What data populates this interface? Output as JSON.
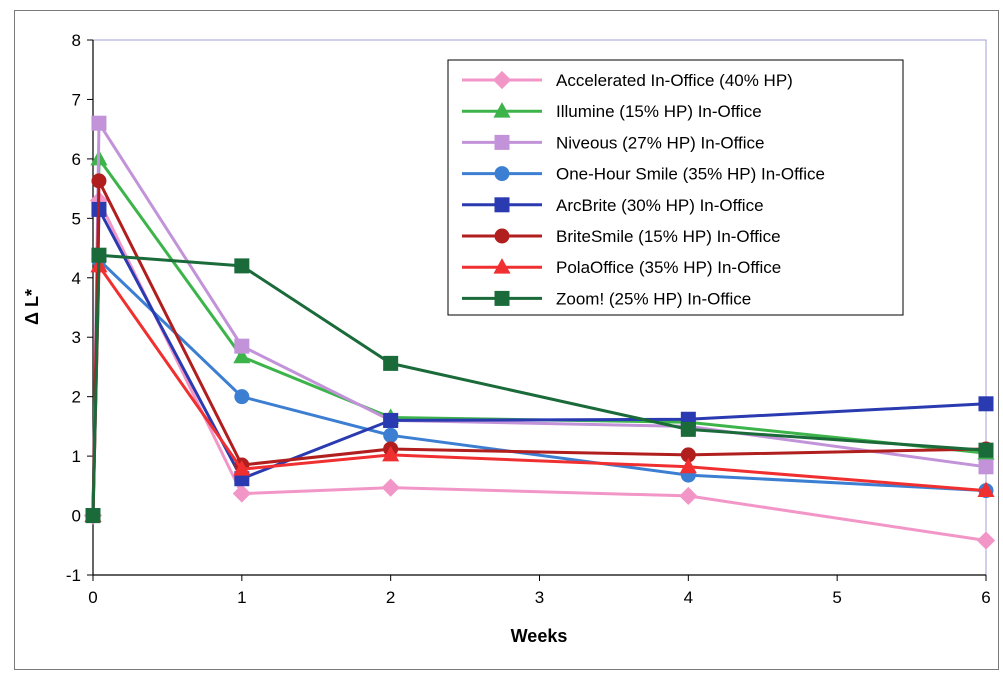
{
  "chart_data": {
    "type": "line",
    "title": "",
    "xlabel": "Weeks",
    "ylabel": "Δ L*",
    "xlim": [
      0,
      6
    ],
    "ylim": [
      -1,
      8
    ],
    "xticks": [
      "0",
      "1",
      "2",
      "3",
      "4",
      "5",
      "6"
    ],
    "yticks": [
      "-1",
      "0",
      "1",
      "2",
      "3",
      "4",
      "5",
      "6",
      "7",
      "8"
    ],
    "grid": false,
    "legend_position": "top-right",
    "series": [
      {
        "name": "Accelerated In-Office (40% HP)",
        "color": "#f296c8",
        "marker": "diamond",
        "x": [
          0,
          0.04,
          1,
          2,
          4,
          6
        ],
        "y": [
          0,
          5.3,
          0.37,
          0.47,
          0.33,
          -0.42
        ]
      },
      {
        "name": "Illumine (15% HP) In-Office",
        "color": "#3cb44a",
        "marker": "triangle",
        "x": [
          0,
          0.04,
          1,
          2,
          4,
          6
        ],
        "y": [
          0,
          6.0,
          2.67,
          1.65,
          1.57,
          1.05
        ]
      },
      {
        "name": "Niveous (27% HP) In-Office",
        "color": "#c293d8",
        "marker": "square",
        "x": [
          0,
          0.04,
          1,
          2,
          4,
          6
        ],
        "y": [
          0,
          6.6,
          2.85,
          1.6,
          1.5,
          0.82
        ]
      },
      {
        "name": "One-Hour Smile (35% HP) In-Office",
        "color": "#3c7fd2",
        "marker": "circle",
        "x": [
          0,
          0.04,
          1,
          2,
          4,
          6
        ],
        "y": [
          0,
          4.3,
          2.0,
          1.35,
          0.68,
          0.42
        ]
      },
      {
        "name": "ArcBrite (30% HP) In-Office",
        "color": "#2a3ab0",
        "marker": "square",
        "x": [
          0,
          0.04,
          1,
          2,
          4,
          6
        ],
        "y": [
          0,
          5.15,
          0.62,
          1.6,
          1.62,
          1.88
        ]
      },
      {
        "name": "BriteSmile (15% HP) In-Office",
        "color": "#b01e1e",
        "marker": "circle",
        "x": [
          0,
          0.04,
          1,
          2,
          4,
          6
        ],
        "y": [
          0,
          5.63,
          0.85,
          1.12,
          1.02,
          1.12
        ]
      },
      {
        "name": "PolaOffice (35% HP) In-Office",
        "color": "#f03030",
        "marker": "triangle",
        "x": [
          0,
          0.04,
          1,
          2,
          4,
          6
        ],
        "y": [
          0,
          4.2,
          0.78,
          1.02,
          0.82,
          0.42
        ]
      },
      {
        "name": "Zoom! (25% HP) In-Office",
        "color": "#1a6a3a",
        "marker": "square",
        "x": [
          0,
          0.04,
          1,
          2,
          4,
          6
        ],
        "y": [
          0,
          4.38,
          4.2,
          2.56,
          1.45,
          1.1
        ]
      }
    ]
  }
}
